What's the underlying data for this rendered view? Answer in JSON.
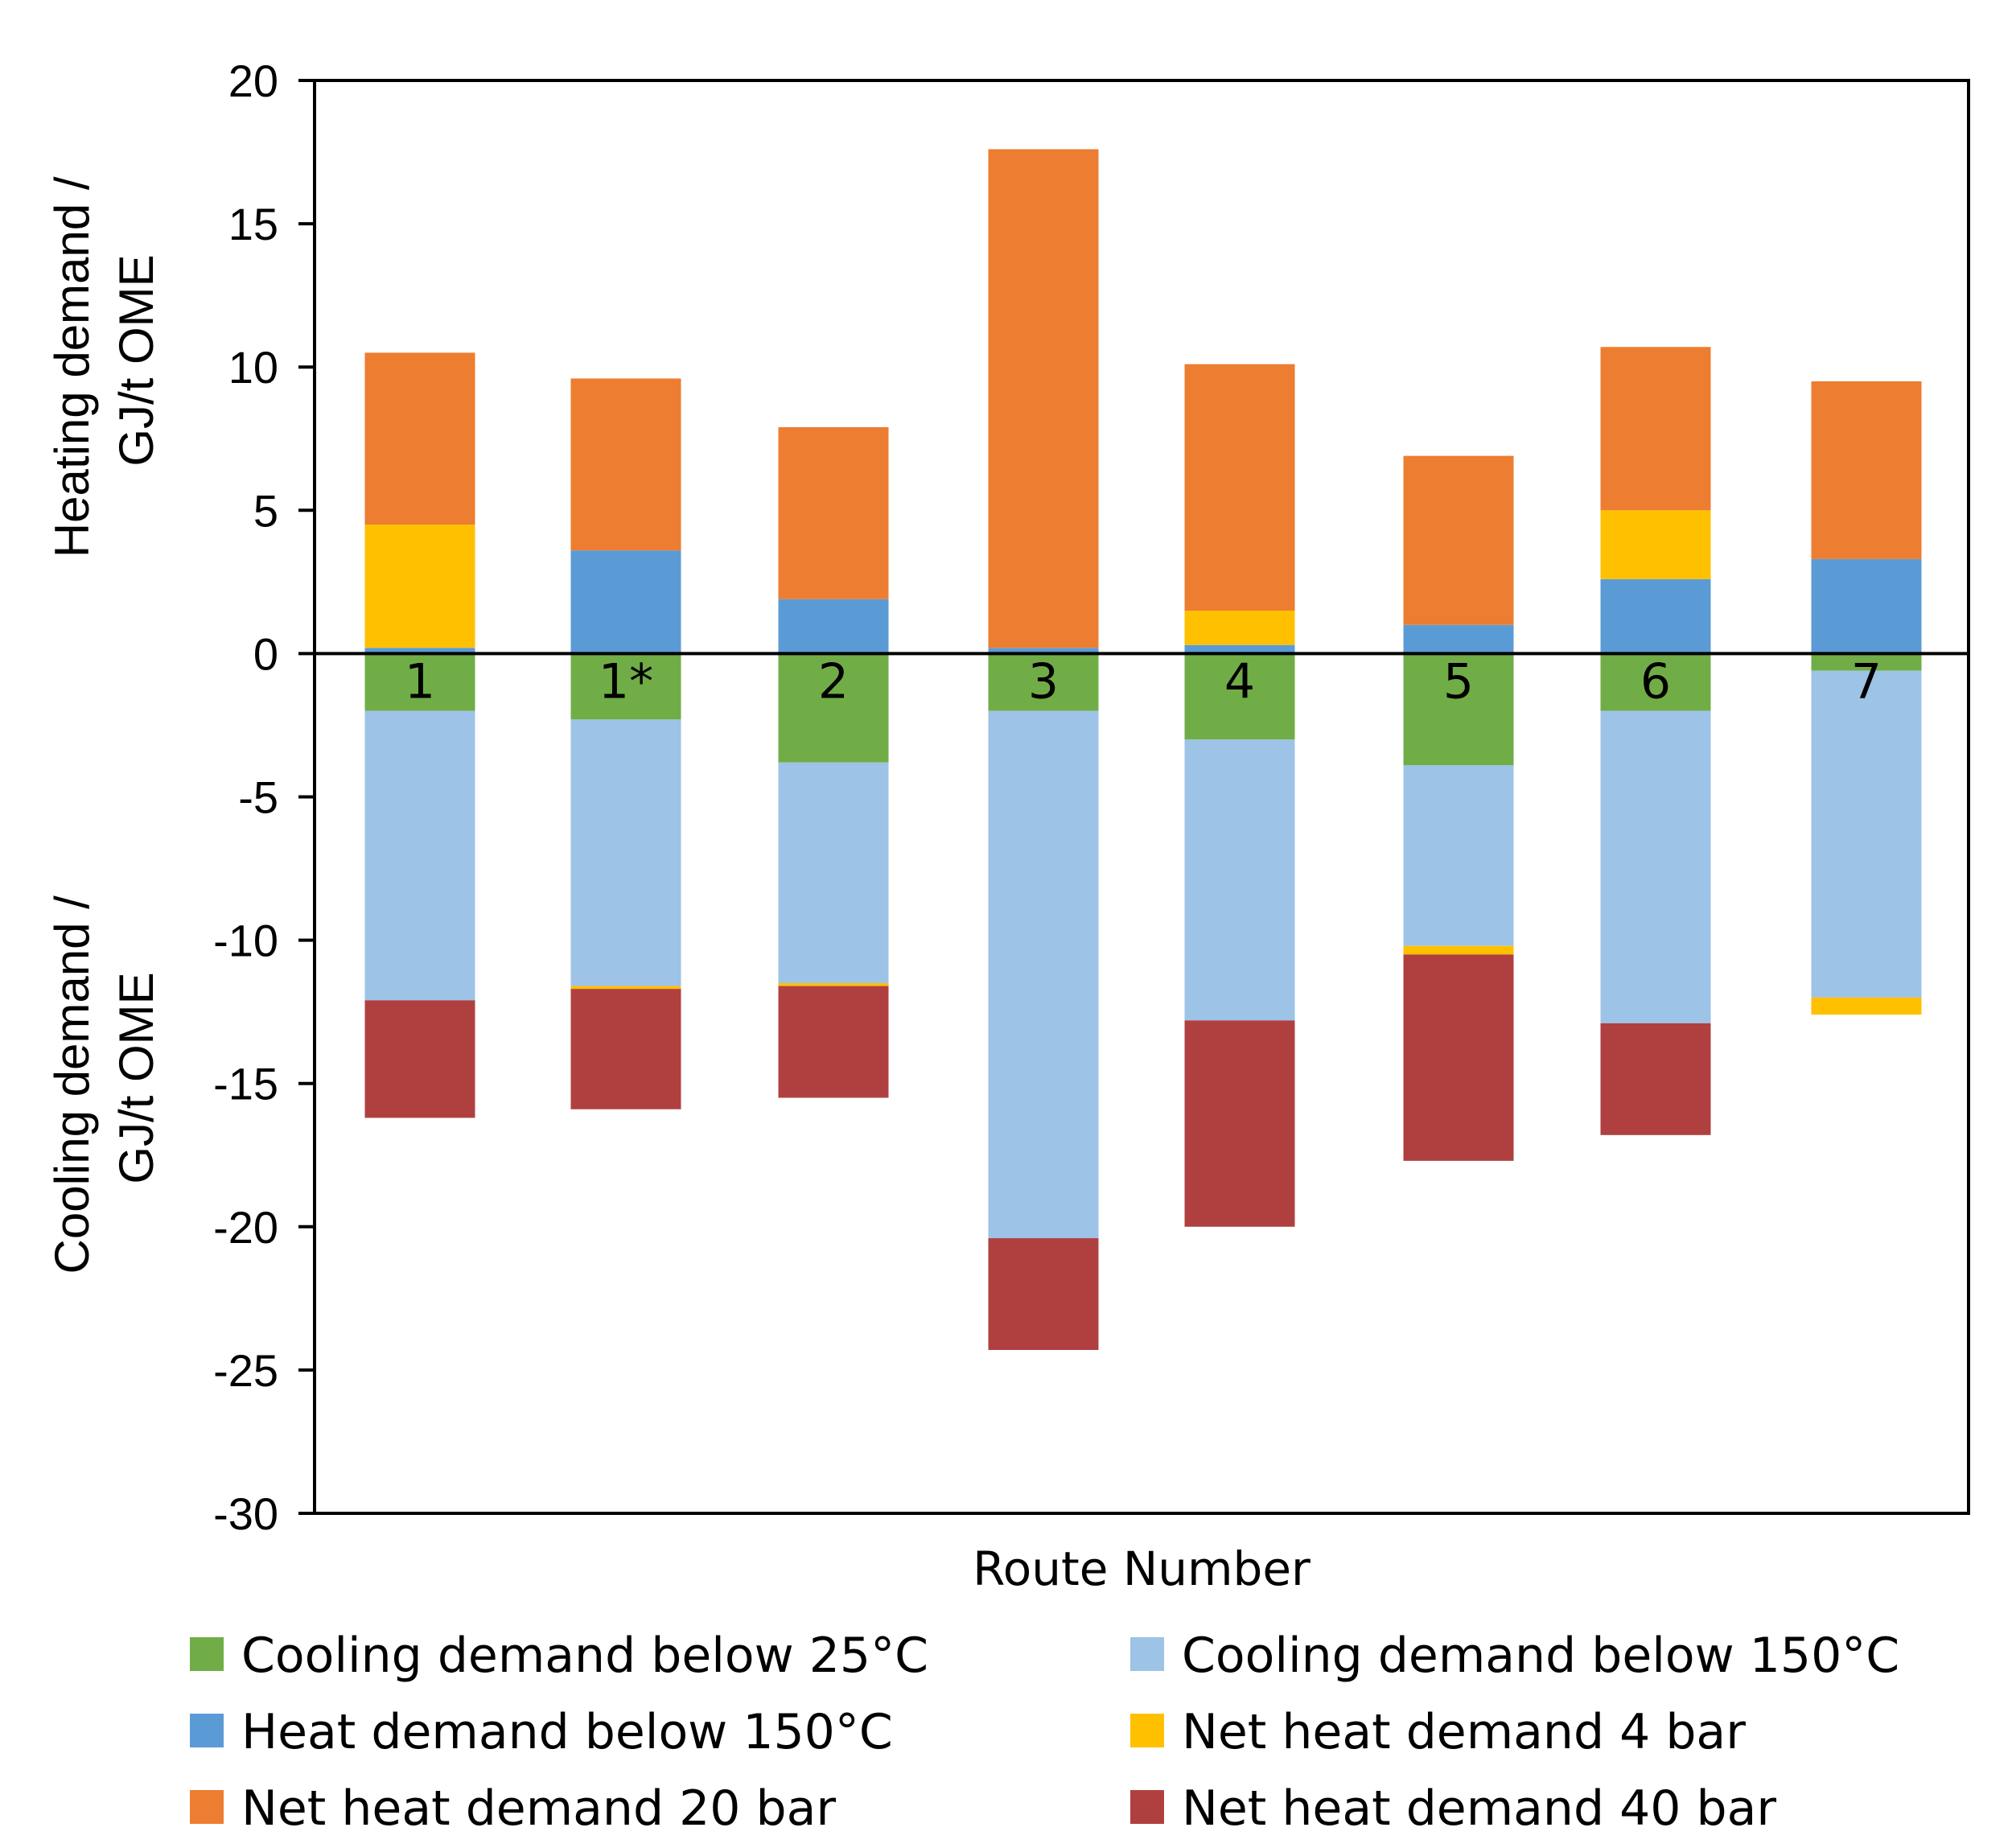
{
  "chart_data": {
    "type": "bar",
    "stacked": true,
    "title": "",
    "xlabel": "Route Number",
    "ylabel_top": [
      "Heating demand /",
      "GJ/t OME"
    ],
    "ylabel_bottom": [
      "Cooling demand /",
      "GJ/t OME"
    ],
    "ylim": [
      -30,
      20
    ],
    "yticks": [
      20,
      15,
      10,
      5,
      0,
      -5,
      -10,
      -15,
      -20,
      -25,
      -30
    ],
    "categories": [
      "1",
      "1*",
      "2",
      "3",
      "4",
      "5",
      "6",
      "7"
    ],
    "legend_position": "bottom",
    "series": [
      {
        "name": "Cooling demand below 25°C",
        "color": "#70AD47",
        "side": "negative",
        "values": [
          -2.0,
          -2.3,
          -3.8,
          -2.0,
          -3.0,
          -3.9,
          -2.0,
          -0.6
        ]
      },
      {
        "name": "Cooling demand below 150°C",
        "color": "#9DC3E6",
        "side": "negative",
        "values": [
          -10.1,
          -9.3,
          -7.7,
          -18.4,
          -9.8,
          -6.3,
          -10.9,
          -11.4
        ]
      },
      {
        "name": "Heat demand below 150°C",
        "color": "#5B9BD5",
        "side": "positive",
        "values": [
          0.2,
          3.6,
          1.9,
          0.2,
          0.3,
          1.0,
          2.6,
          3.3
        ]
      },
      {
        "name": "Net heat demand 4 bar",
        "color": "#FFC000",
        "side": "mixed",
        "values_positive": [
          4.3,
          0,
          0,
          0,
          1.2,
          0,
          2.4,
          0
        ],
        "values_negative": [
          0,
          -0.1,
          -0.1,
          0,
          0,
          -0.3,
          0,
          -0.6
        ]
      },
      {
        "name": "Net heat demand 20 bar",
        "color": "#ED7D31",
        "side": "positive",
        "values": [
          6.0,
          6.0,
          6.0,
          17.4,
          8.6,
          5.9,
          5.7,
          6.2
        ]
      },
      {
        "name": "Net heat demand 40 bar",
        "color": "#B04040",
        "side": "negative",
        "values": [
          -4.1,
          -4.2,
          -3.9,
          -3.9,
          -7.2,
          -7.2,
          -3.9,
          0
        ]
      }
    ],
    "legend": [
      {
        "label": "Cooling demand below 25°C",
        "color": "#70AD47"
      },
      {
        "label": "Cooling demand below 150°C",
        "color": "#9DC3E6"
      },
      {
        "label": "Heat demand below 150°C",
        "color": "#5B9BD5"
      },
      {
        "label": "Net heat demand 4 bar",
        "color": "#FFC000"
      },
      {
        "label": "Net heat demand 20 bar",
        "color": "#ED7D31"
      },
      {
        "label": "Net heat demand 40 bar",
        "color": "#B04040"
      }
    ]
  }
}
